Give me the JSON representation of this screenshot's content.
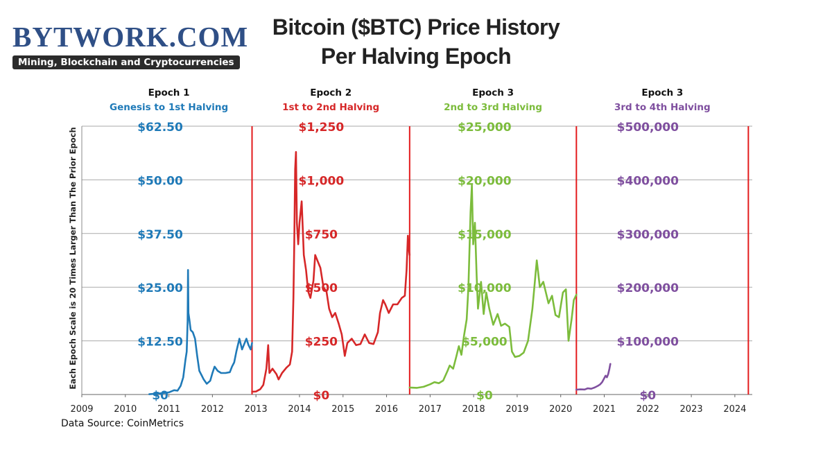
{
  "brand": {
    "name": "BYTWORK.COM",
    "tagline": "Mining, Blockchain and Cryptocurrencies"
  },
  "title_lines": [
    "Bitcoin ($BTC) Price History",
    "Per Halving Epoch"
  ],
  "source": "Data Source: CoinMetrics",
  "colors": {
    "epoch1": "#1f7ab8",
    "epoch2": "#d62728",
    "epoch3": "#7cbc3c",
    "epoch4": "#7f4f9f",
    "halving_line": "#e31a1c",
    "grid": "#aaaaaa"
  },
  "chart_data": {
    "type": "line",
    "ylabel": "Each Epoch Scale is 20 Times Larger Than The Prior Epoch",
    "xlim": [
      2009.0,
      2024.4
    ],
    "x_ticks": [
      "2009",
      "2010",
      "2011",
      "2012",
      "2013",
      "2014",
      "2015",
      "2016",
      "2017",
      "2018",
      "2019",
      "2020",
      "2021",
      "2022",
      "2023",
      "2024"
    ],
    "grid": "horizontal",
    "halving_dates": [
      2012.91,
      2016.53,
      2020.36,
      2024.31
    ],
    "epochs": [
      {
        "title": "Epoch 1",
        "subtitle": "Genesis to 1st Halving",
        "color_key": "epoch1",
        "ylim": [
          0,
          62.5
        ],
        "tick_labels": [
          "$0",
          "$12.50",
          "$25.00",
          "$37.50",
          "$50.00",
          "$62.50"
        ],
        "series": [
          {
            "x": 2010.55,
            "y": 0.06
          },
          {
            "x": 2010.85,
            "y": 0.3
          },
          {
            "x": 2011.0,
            "y": 0.5
          },
          {
            "x": 2011.12,
            "y": 1.0
          },
          {
            "x": 2011.2,
            "y": 0.9
          },
          {
            "x": 2011.27,
            "y": 2.0
          },
          {
            "x": 2011.33,
            "y": 4.0
          },
          {
            "x": 2011.38,
            "y": 8.0
          },
          {
            "x": 2011.41,
            "y": 10.0
          },
          {
            "x": 2011.43,
            "y": 17.0
          },
          {
            "x": 2011.44,
            "y": 29.0
          },
          {
            "x": 2011.45,
            "y": 19.0
          },
          {
            "x": 2011.47,
            "y": 17.5
          },
          {
            "x": 2011.5,
            "y": 15.0
          },
          {
            "x": 2011.55,
            "y": 14.5
          },
          {
            "x": 2011.6,
            "y": 13.0
          },
          {
            "x": 2011.65,
            "y": 9.0
          },
          {
            "x": 2011.7,
            "y": 5.5
          },
          {
            "x": 2011.75,
            "y": 4.5
          },
          {
            "x": 2011.8,
            "y": 3.5
          },
          {
            "x": 2011.87,
            "y": 2.5
          },
          {
            "x": 2011.95,
            "y": 3.2
          },
          {
            "x": 2012.0,
            "y": 5.0
          },
          {
            "x": 2012.05,
            "y": 6.5
          },
          {
            "x": 2012.12,
            "y": 5.5
          },
          {
            "x": 2012.2,
            "y": 5.0
          },
          {
            "x": 2012.3,
            "y": 5.0
          },
          {
            "x": 2012.4,
            "y": 5.2
          },
          {
            "x": 2012.45,
            "y": 6.5
          },
          {
            "x": 2012.5,
            "y": 7.5
          },
          {
            "x": 2012.55,
            "y": 10.0
          },
          {
            "x": 2012.62,
            "y": 13.0
          },
          {
            "x": 2012.68,
            "y": 10.5
          },
          {
            "x": 2012.72,
            "y": 11.5
          },
          {
            "x": 2012.78,
            "y": 13.0
          },
          {
            "x": 2012.83,
            "y": 11.5
          },
          {
            "x": 2012.88,
            "y": 10.5
          },
          {
            "x": 2012.91,
            "y": 12.0
          }
        ]
      },
      {
        "title": "Epoch 2",
        "subtitle": "1st to 2nd Halving",
        "color_key": "epoch2",
        "ylim": [
          0,
          1250
        ],
        "tick_labels": [
          "$0",
          "$250",
          "$500",
          "$750",
          "$1,000",
          "$1,250"
        ],
        "series": [
          {
            "x": 2012.91,
            "y": 13
          },
          {
            "x": 2013.0,
            "y": 14
          },
          {
            "x": 2013.1,
            "y": 25
          },
          {
            "x": 2013.17,
            "y": 45
          },
          {
            "x": 2013.24,
            "y": 120
          },
          {
            "x": 2013.28,
            "y": 230
          },
          {
            "x": 2013.31,
            "y": 100
          },
          {
            "x": 2013.38,
            "y": 120
          },
          {
            "x": 2013.47,
            "y": 95
          },
          {
            "x": 2013.52,
            "y": 70
          },
          {
            "x": 2013.6,
            "y": 100
          },
          {
            "x": 2013.7,
            "y": 125
          },
          {
            "x": 2013.78,
            "y": 140
          },
          {
            "x": 2013.83,
            "y": 200
          },
          {
            "x": 2013.86,
            "y": 450
          },
          {
            "x": 2013.88,
            "y": 700
          },
          {
            "x": 2013.9,
            "y": 1050
          },
          {
            "x": 2013.92,
            "y": 1130
          },
          {
            "x": 2013.94,
            "y": 800
          },
          {
            "x": 2013.97,
            "y": 700
          },
          {
            "x": 2014.0,
            "y": 800
          },
          {
            "x": 2014.05,
            "y": 900
          },
          {
            "x": 2014.1,
            "y": 650
          },
          {
            "x": 2014.15,
            "y": 580
          },
          {
            "x": 2014.2,
            "y": 480
          },
          {
            "x": 2014.25,
            "y": 450
          },
          {
            "x": 2014.32,
            "y": 530
          },
          {
            "x": 2014.36,
            "y": 650
          },
          {
            "x": 2014.42,
            "y": 620
          },
          {
            "x": 2014.48,
            "y": 590
          },
          {
            "x": 2014.55,
            "y": 500
          },
          {
            "x": 2014.62,
            "y": 480
          },
          {
            "x": 2014.68,
            "y": 400
          },
          {
            "x": 2014.75,
            "y": 360
          },
          {
            "x": 2014.82,
            "y": 380
          },
          {
            "x": 2014.9,
            "y": 330
          },
          {
            "x": 2014.97,
            "y": 280
          },
          {
            "x": 2015.04,
            "y": 180
          },
          {
            "x": 2015.1,
            "y": 240
          },
          {
            "x": 2015.2,
            "y": 260
          },
          {
            "x": 2015.3,
            "y": 230
          },
          {
            "x": 2015.4,
            "y": 235
          },
          {
            "x": 2015.5,
            "y": 280
          },
          {
            "x": 2015.6,
            "y": 240
          },
          {
            "x": 2015.7,
            "y": 235
          },
          {
            "x": 2015.8,
            "y": 290
          },
          {
            "x": 2015.85,
            "y": 380
          },
          {
            "x": 2015.92,
            "y": 440
          },
          {
            "x": 2015.97,
            "y": 420
          },
          {
            "x": 2016.05,
            "y": 380
          },
          {
            "x": 2016.15,
            "y": 420
          },
          {
            "x": 2016.25,
            "y": 420
          },
          {
            "x": 2016.35,
            "y": 450
          },
          {
            "x": 2016.42,
            "y": 460
          },
          {
            "x": 2016.46,
            "y": 580
          },
          {
            "x": 2016.49,
            "y": 740
          },
          {
            "x": 2016.51,
            "y": 680
          },
          {
            "x": 2016.53,
            "y": 650
          }
        ]
      },
      {
        "title": "Epoch 3",
        "subtitle": "2nd to 3rd Halving",
        "color_key": "epoch3",
        "ylim": [
          0,
          25000
        ],
        "tick_labels": [
          "$0",
          "$5,000",
          "$10,000",
          "$15,000",
          "$20,000",
          "$25,000"
        ],
        "series": [
          {
            "x": 2016.53,
            "y": 650
          },
          {
            "x": 2016.7,
            "y": 620
          },
          {
            "x": 2016.85,
            "y": 720
          },
          {
            "x": 2017.0,
            "y": 950
          },
          {
            "x": 2017.1,
            "y": 1150
          },
          {
            "x": 2017.2,
            "y": 1050
          },
          {
            "x": 2017.3,
            "y": 1300
          },
          {
            "x": 2017.4,
            "y": 2200
          },
          {
            "x": 2017.45,
            "y": 2700
          },
          {
            "x": 2017.53,
            "y": 2400
          },
          {
            "x": 2017.6,
            "y": 3500
          },
          {
            "x": 2017.66,
            "y": 4500
          },
          {
            "x": 2017.72,
            "y": 3700
          },
          {
            "x": 2017.78,
            "y": 5500
          },
          {
            "x": 2017.84,
            "y": 7000
          },
          {
            "x": 2017.88,
            "y": 10000
          },
          {
            "x": 2017.93,
            "y": 17000
          },
          {
            "x": 2017.96,
            "y": 19500
          },
          {
            "x": 2017.99,
            "y": 14000
          },
          {
            "x": 2018.03,
            "y": 16000
          },
          {
            "x": 2018.07,
            "y": 11000
          },
          {
            "x": 2018.1,
            "y": 8000
          },
          {
            "x": 2018.17,
            "y": 10500
          },
          {
            "x": 2018.23,
            "y": 7500
          },
          {
            "x": 2018.29,
            "y": 9500
          },
          {
            "x": 2018.36,
            "y": 8000
          },
          {
            "x": 2018.45,
            "y": 6500
          },
          {
            "x": 2018.55,
            "y": 7500
          },
          {
            "x": 2018.63,
            "y": 6400
          },
          {
            "x": 2018.72,
            "y": 6600
          },
          {
            "x": 2018.82,
            "y": 6300
          },
          {
            "x": 2018.88,
            "y": 4000
          },
          {
            "x": 2018.95,
            "y": 3500
          },
          {
            "x": 2019.05,
            "y": 3600
          },
          {
            "x": 2019.15,
            "y": 3900
          },
          {
            "x": 2019.25,
            "y": 5000
          },
          {
            "x": 2019.35,
            "y": 8000
          },
          {
            "x": 2019.45,
            "y": 12500
          },
          {
            "x": 2019.52,
            "y": 10000
          },
          {
            "x": 2019.6,
            "y": 10500
          },
          {
            "x": 2019.72,
            "y": 8500
          },
          {
            "x": 2019.8,
            "y": 9200
          },
          {
            "x": 2019.88,
            "y": 7400
          },
          {
            "x": 2019.96,
            "y": 7200
          },
          {
            "x": 2020.05,
            "y": 9500
          },
          {
            "x": 2020.12,
            "y": 9800
          },
          {
            "x": 2020.18,
            "y": 5000
          },
          {
            "x": 2020.25,
            "y": 7000
          },
          {
            "x": 2020.3,
            "y": 8800
          },
          {
            "x": 2020.36,
            "y": 9300
          }
        ]
      },
      {
        "title": "Epoch 3",
        "subtitle": "3rd to 4th Halving",
        "color_key": "epoch4",
        "ylim": [
          0,
          500000
        ],
        "tick_labels": [
          "$0",
          "$100,000",
          "$200,000",
          "$300,000",
          "$400,000",
          "$500,000"
        ],
        "series": [
          {
            "x": 2020.36,
            "y": 9000
          },
          {
            "x": 2020.45,
            "y": 9500
          },
          {
            "x": 2020.55,
            "y": 9300
          },
          {
            "x": 2020.62,
            "y": 11500
          },
          {
            "x": 2020.7,
            "y": 10700
          },
          {
            "x": 2020.78,
            "y": 13000
          },
          {
            "x": 2020.85,
            "y": 16000
          },
          {
            "x": 2020.9,
            "y": 18500
          },
          {
            "x": 2020.95,
            "y": 23000
          },
          {
            "x": 2020.99,
            "y": 29000
          },
          {
            "x": 2021.03,
            "y": 35000
          },
          {
            "x": 2021.06,
            "y": 32000
          },
          {
            "x": 2021.09,
            "y": 38000
          },
          {
            "x": 2021.12,
            "y": 48000
          },
          {
            "x": 2021.14,
            "y": 57000
          }
        ]
      }
    ]
  }
}
